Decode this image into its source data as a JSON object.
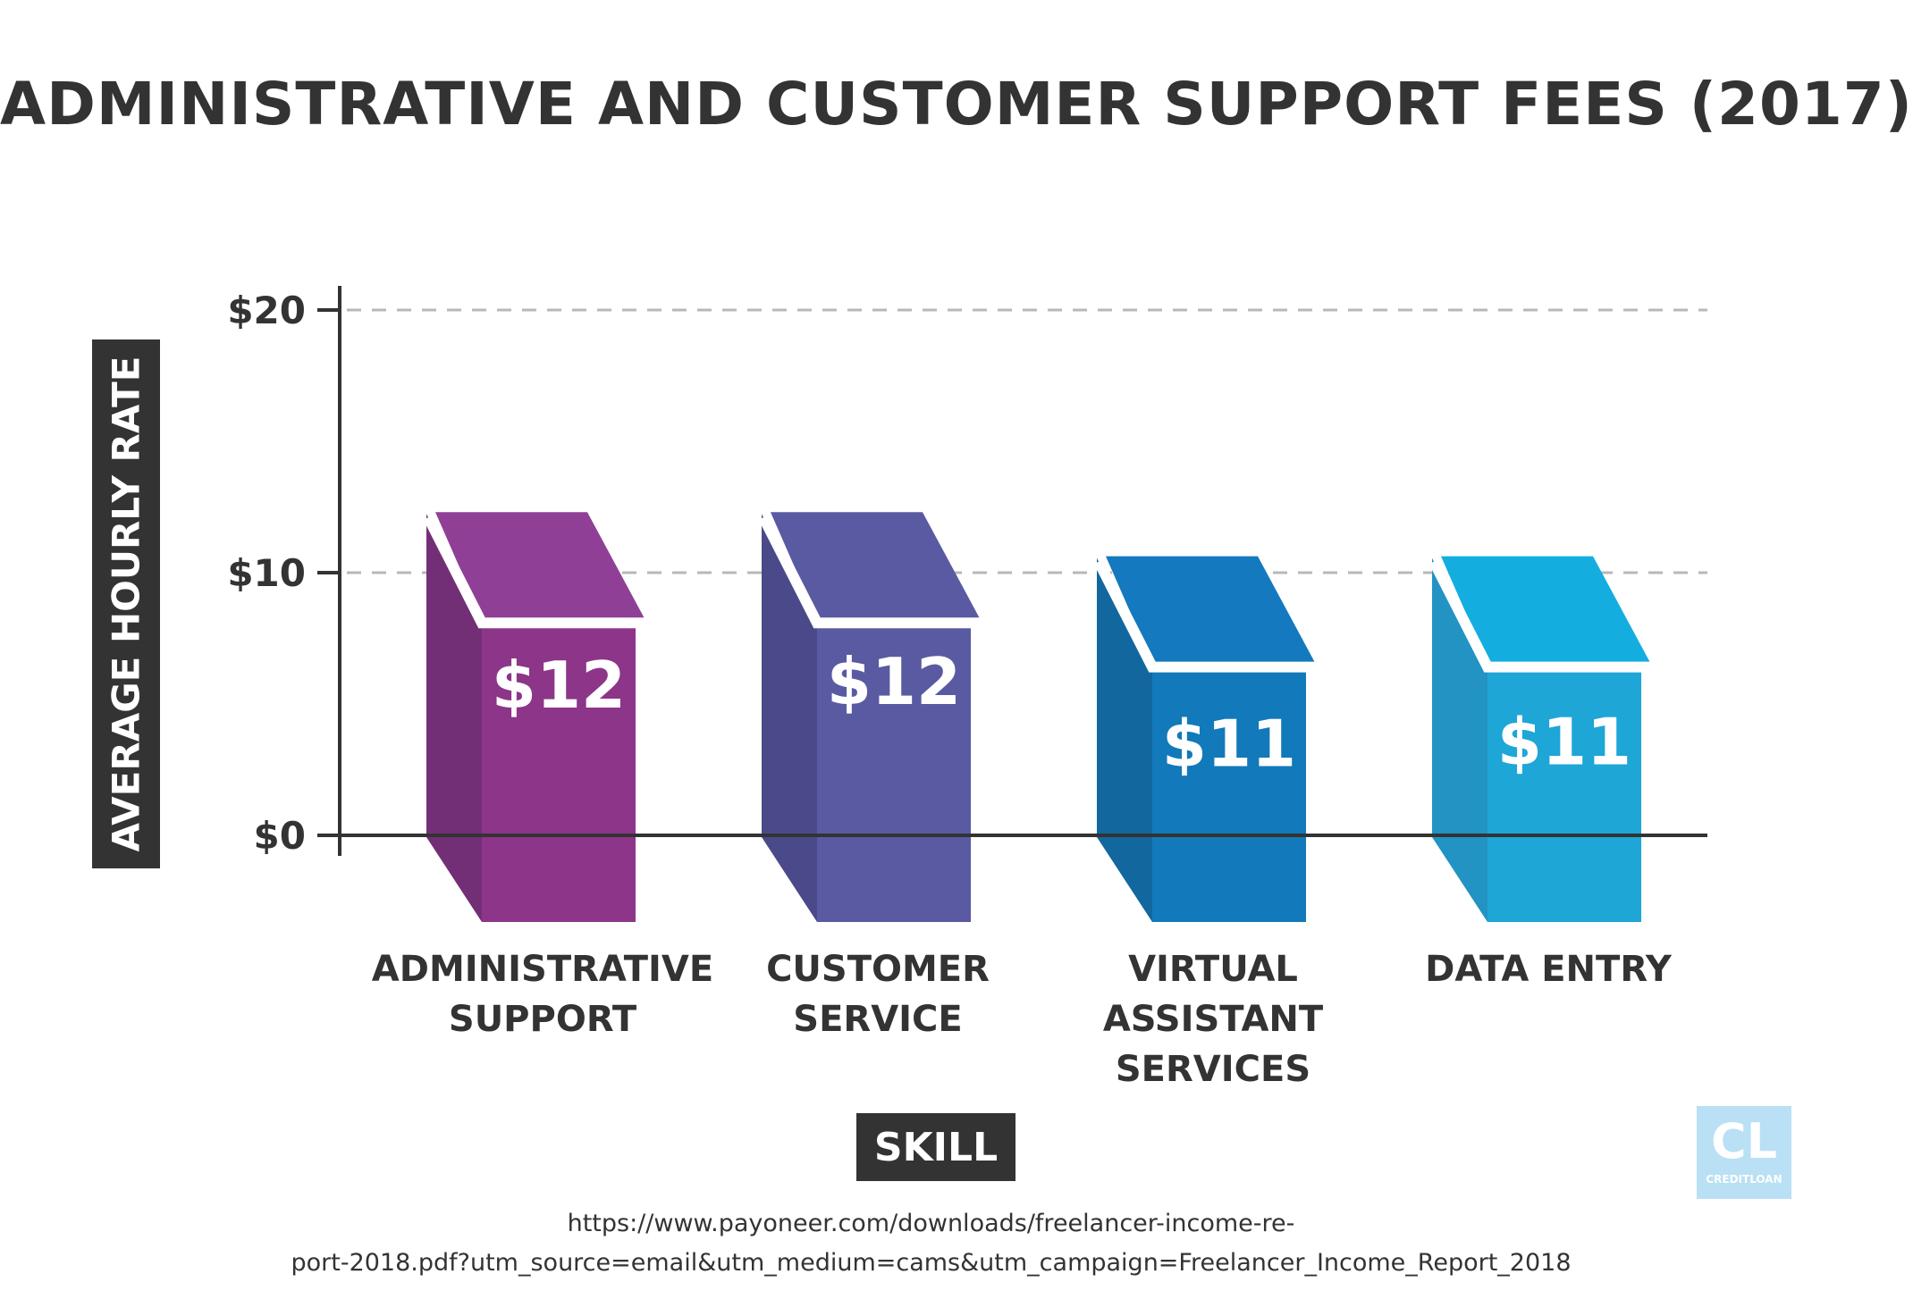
{
  "chart_data": {
    "type": "bar",
    "title": "ADMINISTRATIVE AND CUSTOMER SUPPORT FEES (2017)",
    "xlabel": "SKILL",
    "ylabel": "AVERAGE HOURLY RATE",
    "ylim": [
      0,
      20
    ],
    "yticks": [
      {
        "value": 0,
        "label": "$0"
      },
      {
        "value": 10,
        "label": "$10"
      },
      {
        "value": 20,
        "label": "$20"
      }
    ],
    "grid": true,
    "categories": [
      [
        "ADMINISTRATIVE",
        "SUPPORT"
      ],
      [
        "CUSTOMER",
        "SERVICE"
      ],
      [
        "VIRTUAL",
        "ASSISTANT",
        "SERVICES"
      ],
      [
        "DATA ENTRY"
      ]
    ],
    "values": [
      12,
      12,
      11,
      11
    ],
    "data_labels": [
      "$12",
      "$12",
      "$11",
      "$11"
    ],
    "colors": [
      {
        "front": "#8c3589",
        "side": "#732f76",
        "top": "#8f4096"
      },
      {
        "front": "#5a5aa2",
        "side": "#4a4a8a",
        "top": "#5a5aa2"
      },
      {
        "front": "#1279ba",
        "side": "#12679f",
        "top": "#1479be"
      },
      {
        "front": "#1ea6d7",
        "side": "#2293c3",
        "top": "#14ade0"
      }
    ]
  },
  "source": {
    "line1": "https://www.payoneer.com/downloads/freelancer-income-re-",
    "line2": "port-2018.pdf?utm_source=email&utm_medium=cams&utm_campaign=Freelancer_Income_Report_2018"
  },
  "logo": {
    "mark": "CL",
    "text": "CREDITLOAN",
    "color": "#b9e0f4"
  }
}
